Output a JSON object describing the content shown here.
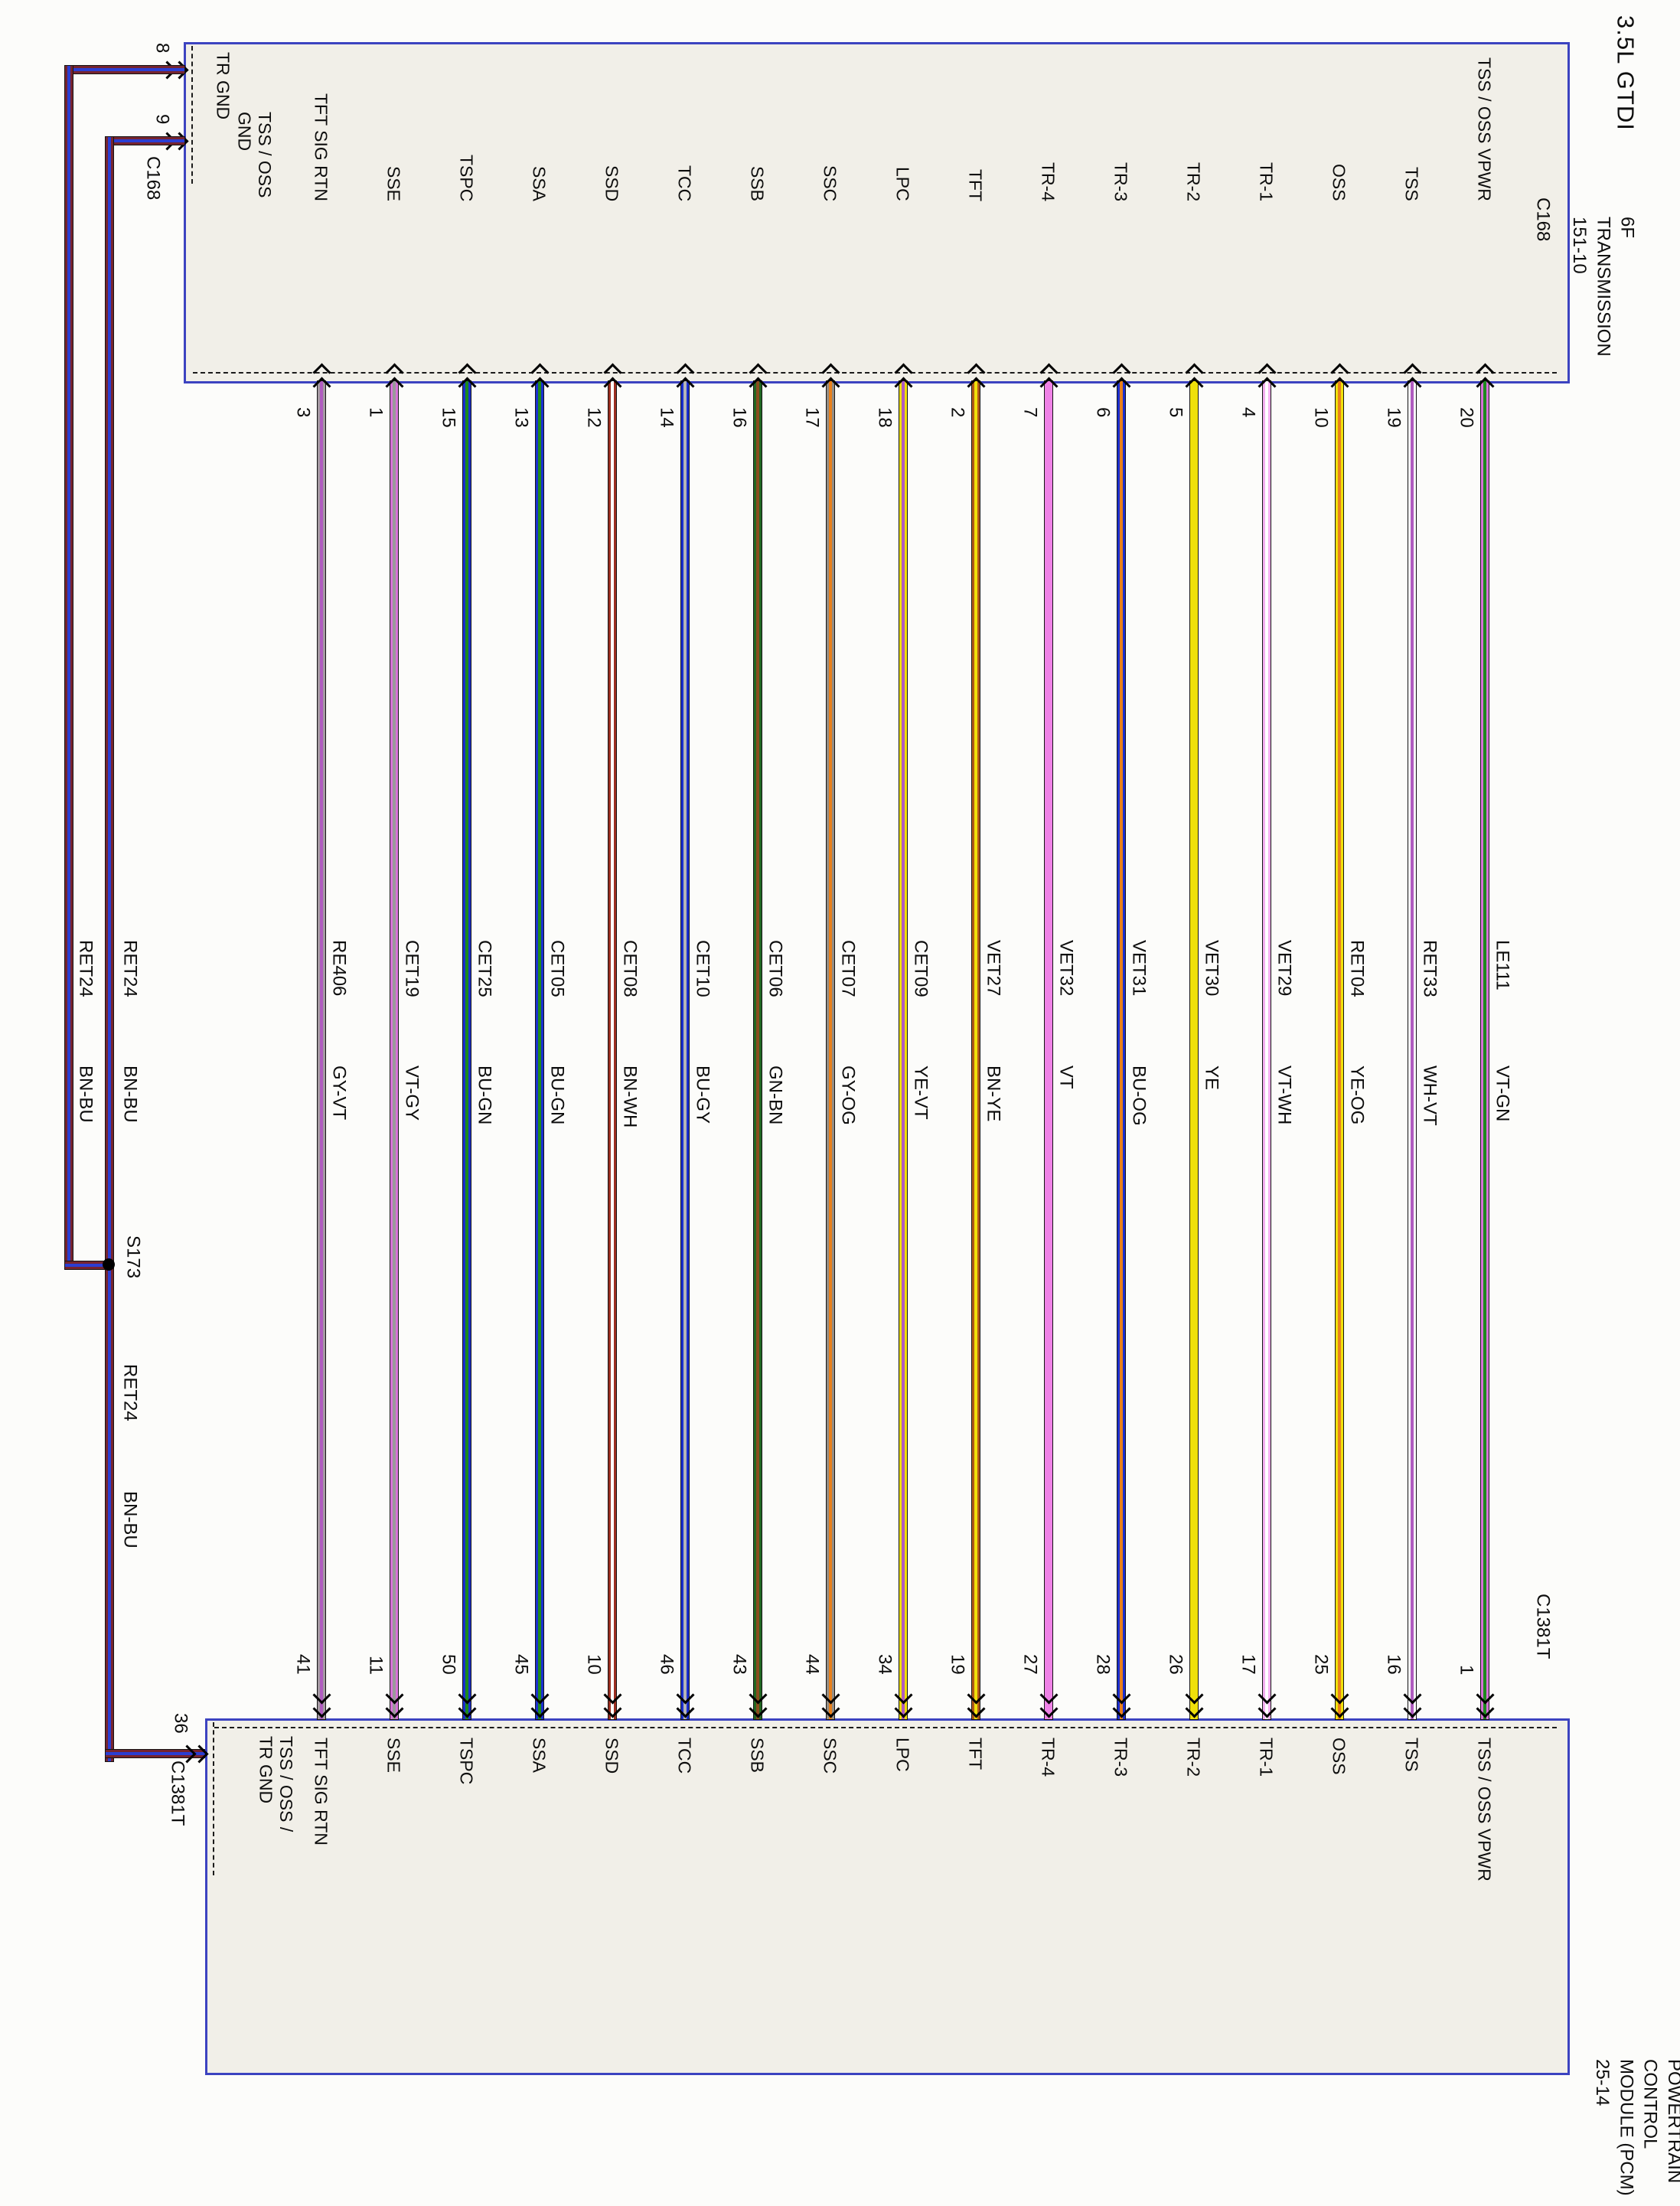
{
  "page": {
    "title": "3.5L GTDI"
  },
  "transmission": {
    "component_lines": [
      "6F",
      "TRANSMISSION",
      "151-10"
    ],
    "connector_main": "C168",
    "connector_left": "C168",
    "left_pins": [
      {
        "pin": "8",
        "label": "TR GND"
      },
      {
        "pin": "9",
        "label_lines": [
          "TSS / OSS",
          "GND"
        ]
      }
    ]
  },
  "pcm": {
    "component_lines": [
      "POWERTRAIN",
      "CONTROL",
      "MODULE (PCM)",
      "25-14"
    ],
    "connector_main": "C1381T",
    "connector_left": "C1381T",
    "left_pin": {
      "pin": "36",
      "label_lines": [
        "TSS / OSS /",
        "TR GND"
      ]
    }
  },
  "wires": [
    {
      "function": "TFT SIG RTN",
      "top_pin": "3",
      "bottom_pin": "41",
      "circuit": "RE406",
      "code": "GY-VT",
      "base": "#a59aa2",
      "stripe": "#b05cc0"
    },
    {
      "function": "SSE",
      "top_pin": "1",
      "bottom_pin": "11",
      "circuit": "CET19",
      "code": "VT-GY",
      "base": "#d873d8",
      "stripe": "#9a9a9a"
    },
    {
      "function": "TSPC",
      "top_pin": "15",
      "bottom_pin": "50",
      "circuit": "CET25",
      "code": "BU-GN",
      "base": "#1b2fd0",
      "stripe": "#1d8a1d"
    },
    {
      "function": "SSA",
      "top_pin": "13",
      "bottom_pin": "45",
      "circuit": "CET05",
      "code": "BU-GN",
      "base": "#1b2fd0",
      "stripe": "#1d8a1d"
    },
    {
      "function": "SSD",
      "top_pin": "12",
      "bottom_pin": "10",
      "circuit": "CET08",
      "code": "BN-WH",
      "base": "#9c2f21",
      "stripe": "#ffffff"
    },
    {
      "function": "TCC",
      "top_pin": "14",
      "bottom_pin": "46",
      "circuit": "CET10",
      "code": "BU-GY",
      "base": "#1b2fd0",
      "stripe": "#b5b5b5"
    },
    {
      "function": "SSB",
      "top_pin": "16",
      "bottom_pin": "43",
      "circuit": "CET06",
      "code": "GN-BN",
      "base": "#226822",
      "stripe": "#8a4d1e"
    },
    {
      "function": "SSC",
      "top_pin": "17",
      "bottom_pin": "44",
      "circuit": "CET07",
      "code": "GY-OG",
      "base": "#938d85",
      "stripe": "#e8801c"
    },
    {
      "function": "LPC",
      "top_pin": "18",
      "bottom_pin": "34",
      "circuit": "CET09",
      "code": "YE-VT",
      "base": "#efe00a",
      "stripe": "#b05cc0"
    },
    {
      "function": "TFT",
      "top_pin": "2",
      "bottom_pin": "19",
      "circuit": "VET27",
      "code": "BN-YE",
      "base": "#b0591a",
      "stripe": "#efe00a"
    },
    {
      "function": "TR-4",
      "top_pin": "7",
      "bottom_pin": "27",
      "circuit": "VET32",
      "code": "VT",
      "base": "#ef82e6",
      "stripe": ""
    },
    {
      "function": "TR-3",
      "top_pin": "6",
      "bottom_pin": "28",
      "circuit": "VET31",
      "code": "BU-OG",
      "base": "#1b2fd0",
      "stripe": "#e8801c"
    },
    {
      "function": "TR-2",
      "top_pin": "5",
      "bottom_pin": "26",
      "circuit": "VET30",
      "code": "YE",
      "base": "#efe00a",
      "stripe": ""
    },
    {
      "function": "TR-1",
      "top_pin": "4",
      "bottom_pin": "17",
      "circuit": "VET29",
      "code": "VT-WH",
      "base": "#f3aef0",
      "stripe": "#ffffff"
    },
    {
      "function": "OSS",
      "top_pin": "10",
      "bottom_pin": "25",
      "circuit": "RET04",
      "code": "YE-OG",
      "base": "#efe00a",
      "stripe": "#e8801c"
    },
    {
      "function": "TSS",
      "top_pin": "19",
      "bottom_pin": "16",
      "circuit": "RET33",
      "code": "WH-VT",
      "base": "#f8f8f8",
      "stripe": "#b05cc0"
    },
    {
      "function": "TSS / OSS VPWR",
      "top_pin": "20",
      "bottom_pin": "1",
      "circuit": "LE111",
      "code": "VT-GN",
      "base": "#d873d8",
      "stripe": "#1d8a1d"
    }
  ],
  "ground": {
    "splice": "S173",
    "base": "#76242f",
    "stripe": "#2b3ed2",
    "upper_left": {
      "circuit": "RET24",
      "code": "BN-BU"
    },
    "upper_right": {
      "circuit": "RET24",
      "code": "BN-BU"
    },
    "lower": {
      "circuit": "RET24",
      "code": "BN-BU"
    }
  }
}
